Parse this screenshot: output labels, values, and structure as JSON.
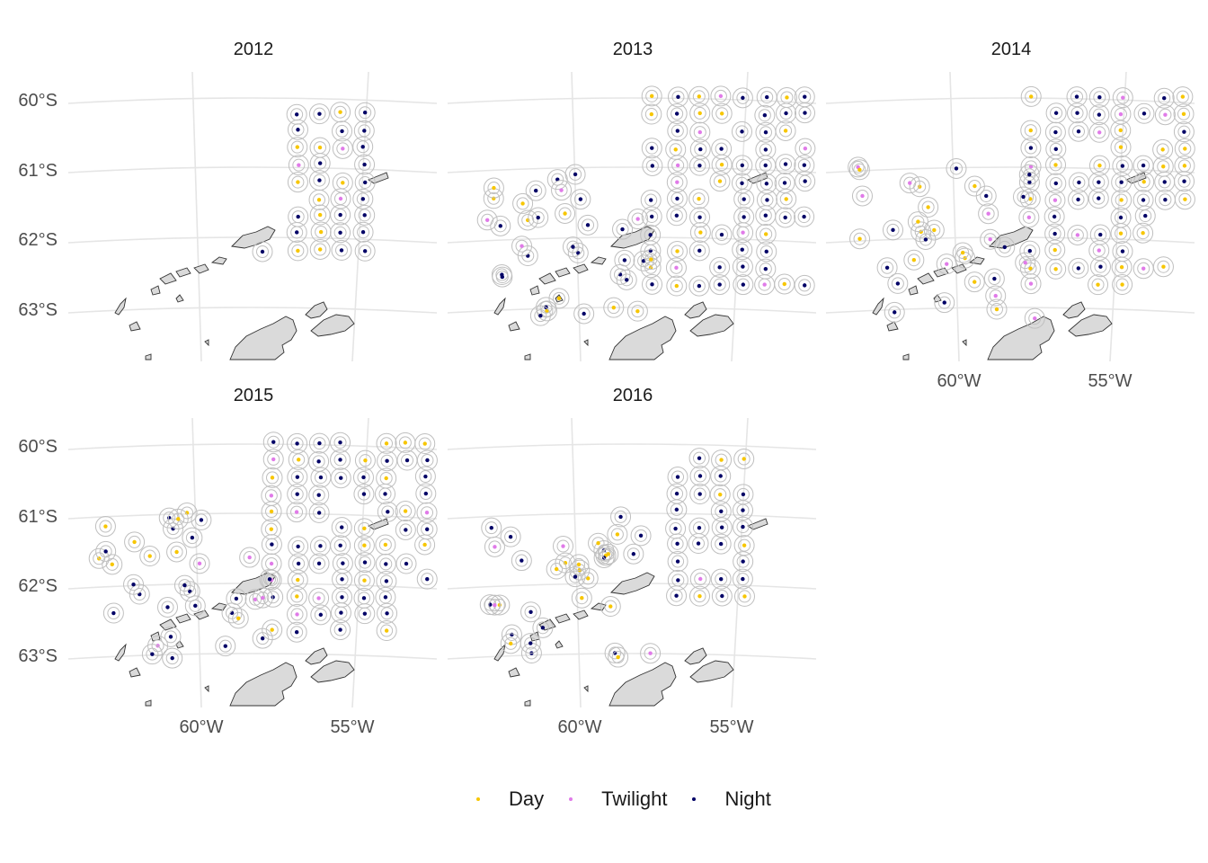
{
  "panels": [
    {
      "year": "2012"
    },
    {
      "year": "2013"
    },
    {
      "year": "2014"
    },
    {
      "year": "2015"
    },
    {
      "year": "2016"
    }
  ],
  "y_ticks": [
    "60°S",
    "61°S",
    "62°S",
    "63°S"
  ],
  "x_ticks": [
    "60°W",
    "55°W"
  ],
  "legend": [
    {
      "label": "Day",
      "color": "#F7C600"
    },
    {
      "label": "Twilight",
      "color": "#E07BE8"
    },
    {
      "label": "Night",
      "color": "#000066"
    }
  ],
  "colors": {
    "land": "#DADADA",
    "coast": "#333333",
    "grid": "#E5E5E5",
    "ring": "#BFBFBF"
  }
}
